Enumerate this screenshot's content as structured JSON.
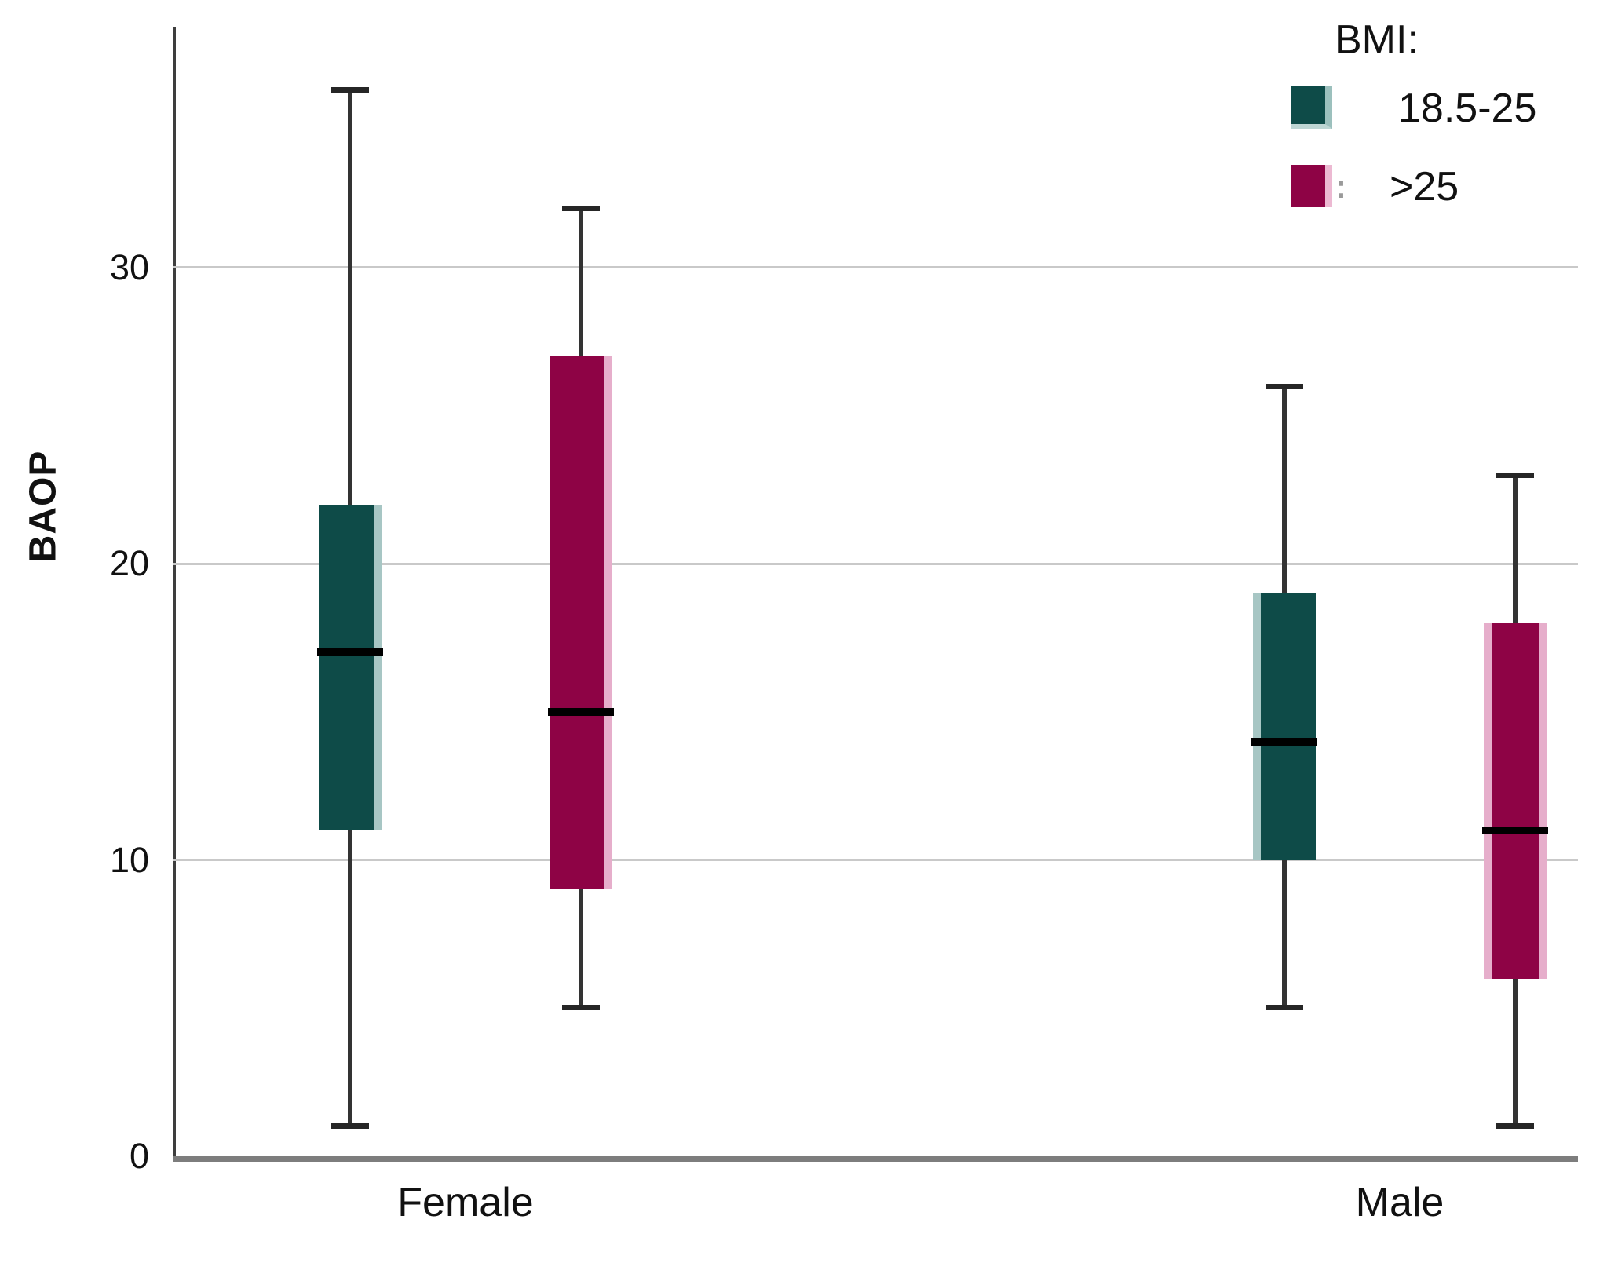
{
  "chart_data": {
    "type": "boxplot",
    "title": "",
    "xlabel": "",
    "ylabel": "BAOP",
    "categories": [
      "Female",
      "Male"
    ],
    "yticks": [
      0,
      10,
      20,
      30
    ],
    "ylim": [
      0,
      38.1
    ],
    "grid": "horizontal",
    "legend": {
      "title": "BMI:",
      "position": "top-right",
      "colon_artifact": ":",
      "entries": [
        {
          "label": "18.5-25",
          "color": "#0E4B48"
        },
        {
          "label": ">25",
          "color": "#8E0345"
        }
      ]
    },
    "series": [
      {
        "name": "18.5-25",
        "color": "#0E4B48",
        "edge_color": "#A7C6C4",
        "boxes": [
          {
            "category": "Female",
            "min": 1,
            "q1": 11,
            "median": 17,
            "q3": 22,
            "max": 36,
            "bevel": "right"
          },
          {
            "category": "Male",
            "min": 5,
            "q1": 10,
            "median": 14,
            "q3": 19,
            "max": 26,
            "bevel": "left"
          }
        ]
      },
      {
        "name": ">25",
        "color": "#8E0345",
        "edge_color": "#E6AECB",
        "boxes": [
          {
            "category": "Female",
            "min": 5,
            "q1": 9,
            "median": 15,
            "q3": 27,
            "max": 32,
            "bevel": "right"
          },
          {
            "category": "Male",
            "min": 1,
            "q1": 6,
            "median": 11,
            "q3": 18,
            "max": 23,
            "bevel": "both"
          }
        ]
      }
    ],
    "colors": {
      "gridline": "#c9c9c9",
      "axis_left": "#3e3e3e",
      "axis_bottom": "#7d7d7d",
      "whisker": "#333333",
      "median": "#000000",
      "text": "#111111"
    }
  }
}
